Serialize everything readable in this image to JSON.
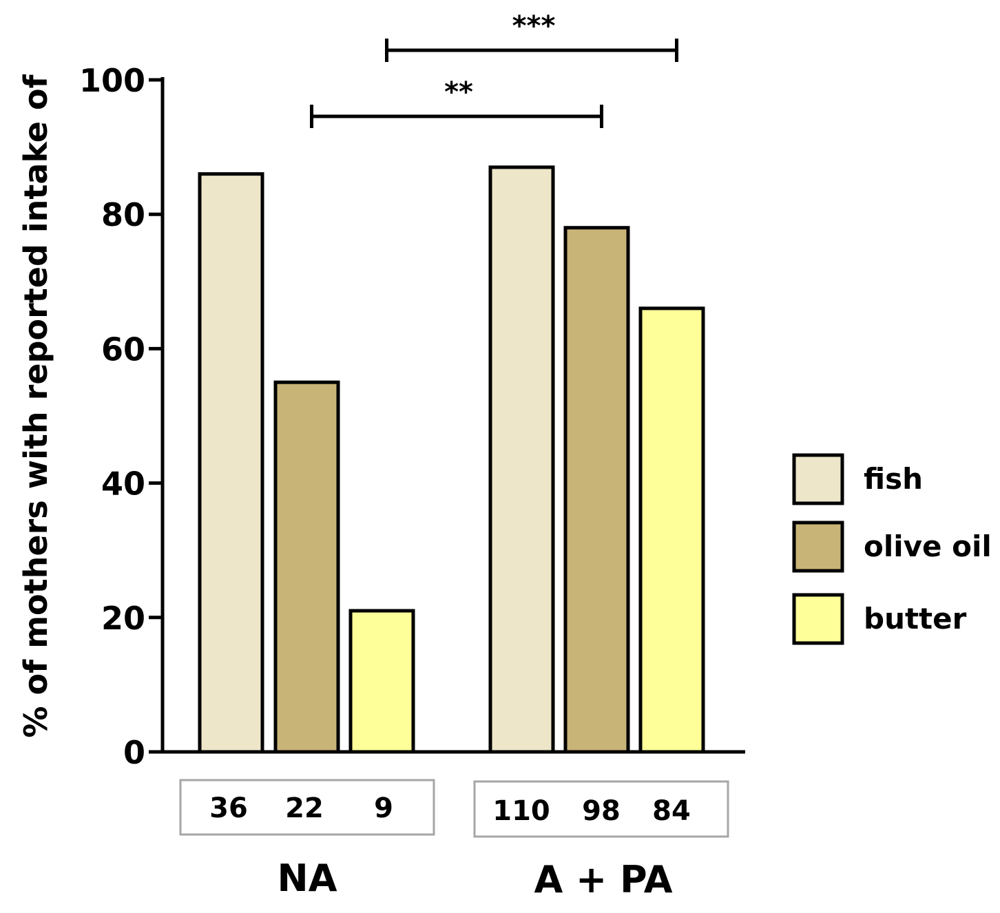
{
  "chart_data": {
    "type": "bar",
    "ylabel": "% of mothers with reported intake of",
    "ylim": [
      0,
      100
    ],
    "yticks": [
      0,
      20,
      40,
      60,
      80,
      100
    ],
    "ytick_labels": [
      "0",
      "20",
      "40",
      "60",
      "80",
      "100"
    ],
    "categories": [
      "NA",
      "A + PA"
    ],
    "series": [
      {
        "name": "fish",
        "color": "#ede6c9",
        "values": [
          86,
          87
        ],
        "counts": [
          "36",
          "110"
        ]
      },
      {
        "name": "olive oil",
        "color": "#c8b477",
        "values": [
          55,
          78
        ],
        "counts": [
          "22",
          "98"
        ]
      },
      {
        "name": "butter",
        "color": "#ffff99",
        "values": [
          21,
          66
        ],
        "counts": [
          "9",
          "84"
        ]
      }
    ],
    "significance": [
      {
        "label": "**",
        "from": {
          "category": "NA",
          "series": "olive oil"
        },
        "to": {
          "category": "A + PA",
          "series": "olive oil"
        }
      },
      {
        "label": "***",
        "from": {
          "category": "NA",
          "series": "butter"
        },
        "to": {
          "category": "A + PA",
          "series": "butter"
        }
      }
    ],
    "legend_position": "right",
    "grid": false
  }
}
